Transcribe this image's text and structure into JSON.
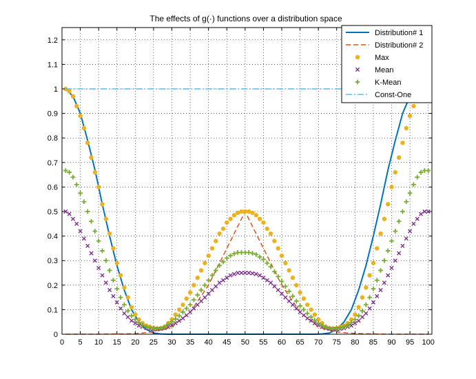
{
  "chart_data": {
    "type": "line",
    "title": "The effects of g(·) functions over a distribution space",
    "xlabel": "",
    "ylabel": "",
    "xlim": [
      0,
      101
    ],
    "ylim": [
      0,
      1.25
    ],
    "xticks": [
      0,
      5,
      10,
      15,
      20,
      25,
      30,
      35,
      40,
      45,
      50,
      55,
      60,
      65,
      70,
      75,
      80,
      85,
      90,
      95,
      100
    ],
    "yticks": [
      0,
      0.1,
      0.2,
      0.3,
      0.4,
      0.5,
      0.6,
      0.7,
      0.8,
      0.9,
      1,
      1.1,
      1.2
    ],
    "grid": true,
    "legend_position": "top-right",
    "series": [
      {
        "name": "Distribution# 1",
        "style": "solid-line",
        "color": "#0072bd",
        "x": [
          1,
          3,
          5,
          7,
          9,
          11,
          13,
          15,
          17,
          19,
          21,
          23,
          25,
          27,
          29,
          31,
          35,
          40,
          50,
          60,
          65,
          69,
          71,
          73,
          75,
          77,
          79,
          81,
          83,
          85,
          87,
          89,
          91,
          93,
          95,
          97,
          99
        ],
        "y": [
          1.0,
          0.97,
          0.9,
          0.79,
          0.67,
          0.53,
          0.4,
          0.28,
          0.18,
          0.1,
          0.05,
          0.02,
          0.005,
          0.001,
          0,
          0,
          0,
          0,
          0,
          0,
          0,
          0,
          0.001,
          0.005,
          0.02,
          0.05,
          0.1,
          0.18,
          0.28,
          0.4,
          0.53,
          0.67,
          0.79,
          0.9,
          0.97,
          1.0,
          1.0
        ]
      },
      {
        "name": "Distribution# 2",
        "style": "dashed-line",
        "color": "#d95319",
        "x": [
          1,
          10,
          20,
          24,
          26,
          28,
          30,
          35,
          40,
          50,
          60,
          65,
          70,
          72,
          74,
          76,
          78,
          80,
          85,
          90,
          100
        ],
        "y": [
          0,
          0,
          0.002,
          0.008,
          0.015,
          0.02,
          0.03,
          0.09,
          0.2,
          0.5,
          0.2,
          0.09,
          0.03,
          0.02,
          0.012,
          0.008,
          0.005,
          0.003,
          0.001,
          0,
          0
        ]
      },
      {
        "name": "Max",
        "style": "markers-dot",
        "color": "#edb120",
        "x": [
          1,
          2,
          3,
          4,
          5,
          6,
          7,
          8,
          9,
          10,
          11,
          12,
          13,
          14,
          15,
          16,
          17,
          18,
          19,
          20,
          21,
          22,
          23,
          24,
          25,
          26,
          27,
          28,
          29,
          30,
          31,
          32,
          33,
          34,
          35,
          36,
          37,
          38,
          39,
          40,
          41,
          42,
          43,
          44,
          45,
          46,
          47,
          48,
          49,
          50,
          51,
          52,
          53,
          54,
          55,
          56,
          57,
          58,
          59,
          60,
          61,
          62,
          63,
          64,
          65,
          66,
          67,
          68,
          69,
          70,
          71,
          72,
          73,
          74,
          75,
          76,
          77,
          78,
          79,
          80,
          81,
          82,
          83,
          84,
          85,
          86,
          87,
          88,
          89,
          90,
          91,
          92,
          93,
          94,
          95,
          96,
          97,
          98,
          99,
          100
        ],
        "y": [
          1.0,
          0.99,
          0.97,
          0.93,
          0.89,
          0.84,
          0.78,
          0.72,
          0.66,
          0.6,
          0.53,
          0.47,
          0.41,
          0.35,
          0.29,
          0.24,
          0.19,
          0.15,
          0.11,
          0.08,
          0.06,
          0.045,
          0.035,
          0.03,
          0.025,
          0.023,
          0.023,
          0.03,
          0.045,
          0.06,
          0.08,
          0.1,
          0.12,
          0.145,
          0.17,
          0.2,
          0.23,
          0.26,
          0.29,
          0.32,
          0.35,
          0.38,
          0.41,
          0.43,
          0.455,
          0.47,
          0.485,
          0.495,
          0.5,
          0.5,
          0.5,
          0.495,
          0.485,
          0.47,
          0.455,
          0.43,
          0.41,
          0.38,
          0.35,
          0.32,
          0.29,
          0.26,
          0.23,
          0.2,
          0.17,
          0.145,
          0.12,
          0.1,
          0.08,
          0.06,
          0.045,
          0.03,
          0.023,
          0.023,
          0.025,
          0.03,
          0.035,
          0.045,
          0.06,
          0.08,
          0.11,
          0.15,
          0.19,
          0.24,
          0.29,
          0.35,
          0.41,
          0.47,
          0.53,
          0.6,
          0.66,
          0.72,
          0.78,
          0.84,
          0.89,
          0.93,
          0.97,
          0.99,
          1.0,
          1.0
        ]
      },
      {
        "name": "Mean",
        "style": "markers-x",
        "color": "#7e2f8e",
        "x": [
          1,
          2,
          3,
          4,
          5,
          6,
          7,
          8,
          9,
          10,
          11,
          12,
          13,
          14,
          15,
          16,
          17,
          18,
          19,
          20,
          21,
          22,
          23,
          24,
          25,
          26,
          27,
          28,
          29,
          30,
          31,
          32,
          33,
          34,
          35,
          36,
          37,
          38,
          39,
          40,
          41,
          42,
          43,
          44,
          45,
          46,
          47,
          48,
          49,
          50,
          51,
          52,
          53,
          54,
          55,
          56,
          57,
          58,
          59,
          60,
          61,
          62,
          63,
          64,
          65,
          66,
          67,
          68,
          69,
          70,
          71,
          72,
          73,
          74,
          75,
          76,
          77,
          78,
          79,
          80,
          81,
          82,
          83,
          84,
          85,
          86,
          87,
          88,
          89,
          90,
          91,
          92,
          93,
          94,
          95,
          96,
          97,
          98,
          99,
          100
        ],
        "y": [
          0.5,
          0.49,
          0.47,
          0.45,
          0.42,
          0.39,
          0.36,
          0.33,
          0.3,
          0.27,
          0.24,
          0.21,
          0.18,
          0.155,
          0.13,
          0.105,
          0.085,
          0.07,
          0.055,
          0.045,
          0.035,
          0.03,
          0.025,
          0.022,
          0.02,
          0.02,
          0.022,
          0.025,
          0.03,
          0.037,
          0.045,
          0.055,
          0.065,
          0.077,
          0.09,
          0.105,
          0.12,
          0.135,
          0.15,
          0.165,
          0.18,
          0.195,
          0.21,
          0.22,
          0.23,
          0.24,
          0.245,
          0.25,
          0.25,
          0.25,
          0.25,
          0.248,
          0.245,
          0.24,
          0.23,
          0.22,
          0.21,
          0.195,
          0.18,
          0.165,
          0.15,
          0.135,
          0.12,
          0.105,
          0.09,
          0.077,
          0.065,
          0.055,
          0.045,
          0.037,
          0.03,
          0.025,
          0.022,
          0.02,
          0.02,
          0.022,
          0.025,
          0.03,
          0.035,
          0.045,
          0.055,
          0.07,
          0.085,
          0.105,
          0.13,
          0.155,
          0.18,
          0.21,
          0.24,
          0.27,
          0.3,
          0.33,
          0.36,
          0.39,
          0.42,
          0.45,
          0.47,
          0.49,
          0.5,
          0.5
        ]
      },
      {
        "name": "K-Mean",
        "style": "markers-plus",
        "color": "#77ac30",
        "x": [
          1,
          2,
          3,
          4,
          5,
          6,
          7,
          8,
          9,
          10,
          11,
          12,
          13,
          14,
          15,
          16,
          17,
          18,
          19,
          20,
          21,
          22,
          23,
          24,
          25,
          26,
          27,
          28,
          29,
          30,
          31,
          32,
          33,
          34,
          35,
          36,
          37,
          38,
          39,
          40,
          41,
          42,
          43,
          44,
          45,
          46,
          47,
          48,
          49,
          50,
          51,
          52,
          53,
          54,
          55,
          56,
          57,
          58,
          59,
          60,
          61,
          62,
          63,
          64,
          65,
          66,
          67,
          68,
          69,
          70,
          71,
          72,
          73,
          74,
          75,
          76,
          77,
          78,
          79,
          80,
          81,
          82,
          83,
          84,
          85,
          86,
          87,
          88,
          89,
          90,
          91,
          92,
          93,
          94,
          95,
          96,
          97,
          98,
          99,
          100
        ],
        "y": [
          0.667,
          0.66,
          0.64,
          0.61,
          0.575,
          0.54,
          0.5,
          0.46,
          0.42,
          0.38,
          0.34,
          0.3,
          0.26,
          0.22,
          0.185,
          0.15,
          0.12,
          0.095,
          0.075,
          0.06,
          0.047,
          0.037,
          0.03,
          0.026,
          0.024,
          0.023,
          0.025,
          0.03,
          0.04,
          0.05,
          0.062,
          0.075,
          0.09,
          0.105,
          0.12,
          0.14,
          0.16,
          0.18,
          0.2,
          0.22,
          0.24,
          0.26,
          0.28,
          0.295,
          0.31,
          0.32,
          0.328,
          0.333,
          0.333,
          0.333,
          0.333,
          0.33,
          0.325,
          0.315,
          0.305,
          0.29,
          0.275,
          0.255,
          0.235,
          0.215,
          0.195,
          0.175,
          0.155,
          0.135,
          0.115,
          0.1,
          0.085,
          0.07,
          0.057,
          0.045,
          0.036,
          0.03,
          0.025,
          0.023,
          0.023,
          0.025,
          0.03,
          0.037,
          0.047,
          0.06,
          0.075,
          0.095,
          0.12,
          0.15,
          0.185,
          0.22,
          0.26,
          0.3,
          0.34,
          0.38,
          0.42,
          0.46,
          0.5,
          0.54,
          0.575,
          0.61,
          0.64,
          0.66,
          0.667,
          0.667
        ]
      },
      {
        "name": "Const-One",
        "style": "dashdot-line",
        "color": "#4dbeee",
        "x": [
          1,
          100
        ],
        "y": [
          1,
          1
        ]
      }
    ]
  }
}
